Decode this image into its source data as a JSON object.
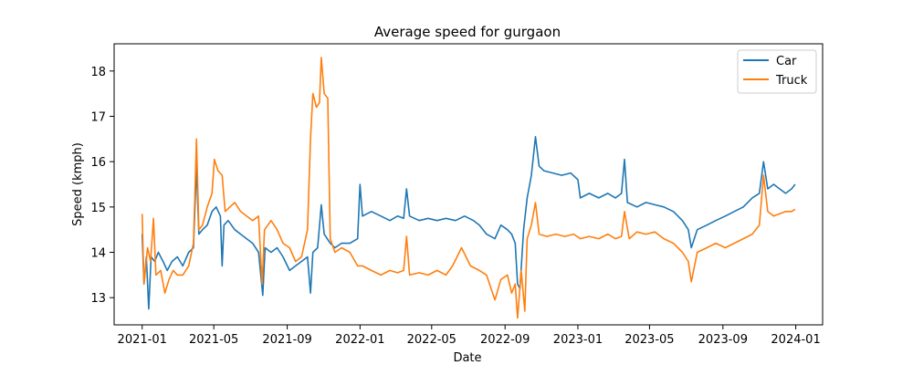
{
  "chart_data": {
    "type": "line",
    "title": "Average speed for gurgaon",
    "xlabel": "Date",
    "ylabel": "Speed (kmph)",
    "x_ticks": [
      "2021-01",
      "2021-05",
      "2021-09",
      "2022-01",
      "2022-05",
      "2022-09",
      "2023-01",
      "2023-05",
      "2023-09",
      "2024-01"
    ],
    "y_ticks": [
      13,
      14,
      15,
      16,
      17,
      18
    ],
    "xlim": [
      "2020-11-15",
      "2024-02-15"
    ],
    "ylim": [
      12.4,
      18.6
    ],
    "grid": false,
    "legend": "top-right",
    "colors": {
      "Car": "#1f77b4",
      "Truck": "#ff7f0e"
    },
    "series": [
      {
        "name": "Car",
        "points": [
          [
            "2021-01-01",
            14.4
          ],
          [
            "2021-01-04",
            13.3
          ],
          [
            "2021-01-08",
            13.9
          ],
          [
            "2021-01-12",
            12.75
          ],
          [
            "2021-01-16",
            13.9
          ],
          [
            "2021-01-22",
            13.8
          ],
          [
            "2021-01-28",
            14.0
          ],
          [
            "2021-02-05",
            13.8
          ],
          [
            "2021-02-12",
            13.6
          ],
          [
            "2021-02-20",
            13.8
          ],
          [
            "2021-03-01",
            13.9
          ],
          [
            "2021-03-10",
            13.7
          ],
          [
            "2021-03-20",
            14.0
          ],
          [
            "2021-03-28",
            14.1
          ],
          [
            "2021-04-02",
            15.9
          ],
          [
            "2021-04-06",
            14.4
          ],
          [
            "2021-04-12",
            14.5
          ],
          [
            "2021-04-20",
            14.6
          ],
          [
            "2021-04-28",
            14.9
          ],
          [
            "2021-05-05",
            15.0
          ],
          [
            "2021-05-12",
            14.8
          ],
          [
            "2021-05-15",
            13.7
          ],
          [
            "2021-05-18",
            14.6
          ],
          [
            "2021-05-25",
            14.7
          ],
          [
            "2021-06-05",
            14.5
          ],
          [
            "2021-06-15",
            14.4
          ],
          [
            "2021-06-25",
            14.3
          ],
          [
            "2021-07-05",
            14.2
          ],
          [
            "2021-07-15",
            14.0
          ],
          [
            "2021-07-22",
            13.05
          ],
          [
            "2021-07-26",
            14.1
          ],
          [
            "2021-08-05",
            14.0
          ],
          [
            "2021-08-15",
            14.1
          ],
          [
            "2021-08-25",
            13.9
          ],
          [
            "2021-09-05",
            13.6
          ],
          [
            "2021-09-15",
            13.7
          ],
          [
            "2021-09-25",
            13.8
          ],
          [
            "2021-10-05",
            13.9
          ],
          [
            "2021-10-10",
            13.1
          ],
          [
            "2021-10-14",
            14.0
          ],
          [
            "2021-10-22",
            14.1
          ],
          [
            "2021-10-28",
            15.05
          ],
          [
            "2021-11-02",
            14.4
          ],
          [
            "2021-11-12",
            14.2
          ],
          [
            "2021-11-20",
            14.1
          ],
          [
            "2021-12-01",
            14.2
          ],
          [
            "2021-12-15",
            14.2
          ],
          [
            "2021-12-28",
            14.3
          ],
          [
            "2022-01-01",
            15.5
          ],
          [
            "2022-01-05",
            14.8
          ],
          [
            "2022-01-20",
            14.9
          ],
          [
            "2022-02-05",
            14.8
          ],
          [
            "2022-02-20",
            14.7
          ],
          [
            "2022-03-05",
            14.8
          ],
          [
            "2022-03-15",
            14.75
          ],
          [
            "2022-03-20",
            15.4
          ],
          [
            "2022-03-25",
            14.8
          ],
          [
            "2022-04-10",
            14.7
          ],
          [
            "2022-04-25",
            14.75
          ],
          [
            "2022-05-10",
            14.7
          ],
          [
            "2022-05-25",
            14.75
          ],
          [
            "2022-06-10",
            14.7
          ],
          [
            "2022-06-25",
            14.8
          ],
          [
            "2022-07-10",
            14.7
          ],
          [
            "2022-07-20",
            14.6
          ],
          [
            "2022-08-01",
            14.4
          ],
          [
            "2022-08-15",
            14.3
          ],
          [
            "2022-08-25",
            14.6
          ],
          [
            "2022-09-05",
            14.5
          ],
          [
            "2022-09-12",
            14.4
          ],
          [
            "2022-09-18",
            14.2
          ],
          [
            "2022-09-22",
            13.3
          ],
          [
            "2022-09-26",
            13.2
          ],
          [
            "2022-10-02",
            14.5
          ],
          [
            "2022-10-08",
            15.2
          ],
          [
            "2022-10-15",
            15.7
          ],
          [
            "2022-10-22",
            16.55
          ],
          [
            "2022-10-28",
            15.9
          ],
          [
            "2022-11-05",
            15.8
          ],
          [
            "2022-11-20",
            15.75
          ],
          [
            "2022-12-05",
            15.7
          ],
          [
            "2022-12-20",
            15.75
          ],
          [
            "2023-01-01",
            15.6
          ],
          [
            "2023-01-05",
            15.2
          ],
          [
            "2023-01-20",
            15.3
          ],
          [
            "2023-02-05",
            15.2
          ],
          [
            "2023-02-20",
            15.3
          ],
          [
            "2023-03-05",
            15.2
          ],
          [
            "2023-03-15",
            15.3
          ],
          [
            "2023-03-20",
            16.05
          ],
          [
            "2023-03-25",
            15.1
          ],
          [
            "2023-04-10",
            15.0
          ],
          [
            "2023-04-25",
            15.1
          ],
          [
            "2023-05-10",
            15.05
          ],
          [
            "2023-05-25",
            15.0
          ],
          [
            "2023-06-10",
            14.9
          ],
          [
            "2023-06-25",
            14.7
          ],
          [
            "2023-07-05",
            14.5
          ],
          [
            "2023-07-10",
            14.1
          ],
          [
            "2023-07-20",
            14.5
          ],
          [
            "2023-08-05",
            14.6
          ],
          [
            "2023-08-20",
            14.7
          ],
          [
            "2023-09-05",
            14.8
          ],
          [
            "2023-09-20",
            14.9
          ],
          [
            "2023-10-05",
            15.0
          ],
          [
            "2023-10-20",
            15.2
          ],
          [
            "2023-11-01",
            15.3
          ],
          [
            "2023-11-08",
            16.0
          ],
          [
            "2023-11-15",
            15.4
          ],
          [
            "2023-11-25",
            15.5
          ],
          [
            "2023-12-05",
            15.4
          ],
          [
            "2023-12-15",
            15.3
          ],
          [
            "2023-12-25",
            15.4
          ],
          [
            "2023-12-31",
            15.5
          ]
        ]
      },
      {
        "name": "Truck",
        "points": [
          [
            "2021-01-01",
            14.85
          ],
          [
            "2021-01-04",
            13.3
          ],
          [
            "2021-01-10",
            14.1
          ],
          [
            "2021-01-15",
            13.8
          ],
          [
            "2021-01-20",
            14.75
          ],
          [
            "2021-01-24",
            13.5
          ],
          [
            "2021-02-01",
            13.6
          ],
          [
            "2021-02-08",
            13.1
          ],
          [
            "2021-02-15",
            13.4
          ],
          [
            "2021-02-22",
            13.6
          ],
          [
            "2021-03-01",
            13.5
          ],
          [
            "2021-03-10",
            13.5
          ],
          [
            "2021-03-20",
            13.7
          ],
          [
            "2021-03-28",
            14.2
          ],
          [
            "2021-04-02",
            16.5
          ],
          [
            "2021-04-06",
            14.5
          ],
          [
            "2021-04-12",
            14.6
          ],
          [
            "2021-04-20",
            15.0
          ],
          [
            "2021-04-28",
            15.3
          ],
          [
            "2021-05-02",
            16.05
          ],
          [
            "2021-05-08",
            15.8
          ],
          [
            "2021-05-15",
            15.7
          ],
          [
            "2021-05-20",
            14.9
          ],
          [
            "2021-05-28",
            15.0
          ],
          [
            "2021-06-05",
            15.1
          ],
          [
            "2021-06-15",
            14.9
          ],
          [
            "2021-06-25",
            14.8
          ],
          [
            "2021-07-05",
            14.7
          ],
          [
            "2021-07-15",
            14.8
          ],
          [
            "2021-07-21",
            13.3
          ],
          [
            "2021-07-25",
            14.5
          ],
          [
            "2021-08-05",
            14.7
          ],
          [
            "2021-08-15",
            14.5
          ],
          [
            "2021-08-25",
            14.2
          ],
          [
            "2021-09-05",
            14.1
          ],
          [
            "2021-09-15",
            13.8
          ],
          [
            "2021-09-25",
            13.9
          ],
          [
            "2021-10-05",
            14.5
          ],
          [
            "2021-10-10",
            16.5
          ],
          [
            "2021-10-14",
            17.5
          ],
          [
            "2021-10-20",
            17.2
          ],
          [
            "2021-10-25",
            17.3
          ],
          [
            "2021-10-28",
            18.3
          ],
          [
            "2021-11-02",
            17.5
          ],
          [
            "2021-11-08",
            17.4
          ],
          [
            "2021-11-12",
            14.3
          ],
          [
            "2021-11-20",
            14.0
          ],
          [
            "2021-12-01",
            14.1
          ],
          [
            "2021-12-15",
            14.0
          ],
          [
            "2021-12-28",
            13.7
          ],
          [
            "2022-01-05",
            13.7
          ],
          [
            "2022-01-20",
            13.6
          ],
          [
            "2022-02-05",
            13.5
          ],
          [
            "2022-02-20",
            13.6
          ],
          [
            "2022-03-05",
            13.55
          ],
          [
            "2022-03-15",
            13.6
          ],
          [
            "2022-03-20",
            14.35
          ],
          [
            "2022-03-25",
            13.5
          ],
          [
            "2022-04-10",
            13.55
          ],
          [
            "2022-04-25",
            13.5
          ],
          [
            "2022-05-10",
            13.6
          ],
          [
            "2022-05-25",
            13.5
          ],
          [
            "2022-06-05",
            13.7
          ],
          [
            "2022-06-20",
            14.1
          ],
          [
            "2022-07-05",
            13.7
          ],
          [
            "2022-07-20",
            13.6
          ],
          [
            "2022-08-01",
            13.5
          ],
          [
            "2022-08-15",
            12.95
          ],
          [
            "2022-08-25",
            13.4
          ],
          [
            "2022-09-05",
            13.5
          ],
          [
            "2022-09-12",
            13.1
          ],
          [
            "2022-09-18",
            13.3
          ],
          [
            "2022-09-22",
            12.55
          ],
          [
            "2022-09-28",
            13.6
          ],
          [
            "2022-10-04",
            12.7
          ],
          [
            "2022-10-08",
            14.3
          ],
          [
            "2022-10-15",
            14.6
          ],
          [
            "2022-10-22",
            15.1
          ],
          [
            "2022-10-28",
            14.4
          ],
          [
            "2022-11-10",
            14.35
          ],
          [
            "2022-11-25",
            14.4
          ],
          [
            "2022-12-10",
            14.35
          ],
          [
            "2022-12-25",
            14.4
          ],
          [
            "2023-01-05",
            14.3
          ],
          [
            "2023-01-20",
            14.35
          ],
          [
            "2023-02-05",
            14.3
          ],
          [
            "2023-02-20",
            14.4
          ],
          [
            "2023-03-05",
            14.3
          ],
          [
            "2023-03-15",
            14.35
          ],
          [
            "2023-03-20",
            14.9
          ],
          [
            "2023-03-28",
            14.3
          ],
          [
            "2023-04-10",
            14.45
          ],
          [
            "2023-04-25",
            14.4
          ],
          [
            "2023-05-10",
            14.45
          ],
          [
            "2023-05-25",
            14.3
          ],
          [
            "2023-06-10",
            14.2
          ],
          [
            "2023-06-25",
            14.0
          ],
          [
            "2023-07-05",
            13.8
          ],
          [
            "2023-07-10",
            13.35
          ],
          [
            "2023-07-20",
            14.0
          ],
          [
            "2023-08-05",
            14.1
          ],
          [
            "2023-08-20",
            14.2
          ],
          [
            "2023-09-05",
            14.1
          ],
          [
            "2023-09-20",
            14.2
          ],
          [
            "2023-10-05",
            14.3
          ],
          [
            "2023-10-20",
            14.4
          ],
          [
            "2023-11-01",
            14.6
          ],
          [
            "2023-11-08",
            15.7
          ],
          [
            "2023-11-15",
            14.9
          ],
          [
            "2023-11-25",
            14.8
          ],
          [
            "2023-12-05",
            14.85
          ],
          [
            "2023-12-15",
            14.9
          ],
          [
            "2023-12-25",
            14.9
          ],
          [
            "2023-12-31",
            14.95
          ]
        ]
      }
    ]
  }
}
